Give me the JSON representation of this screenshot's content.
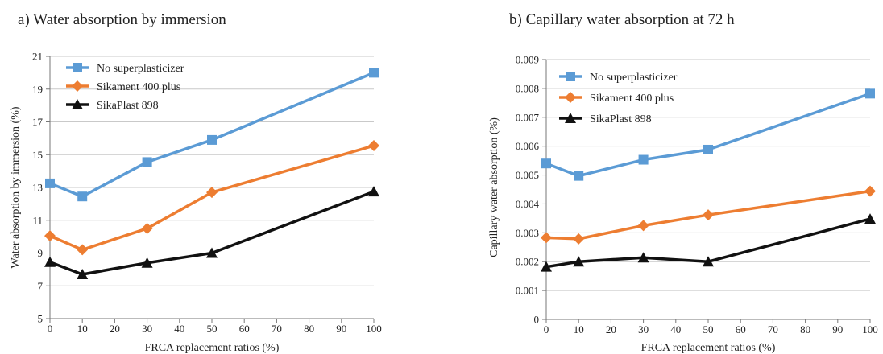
{
  "chart_data": [
    {
      "type": "line",
      "title": "a) Water absorption by immersion",
      "xlabel": "FRCA replacement ratios (%)",
      "ylabel": "Water absorption by immersion (%)",
      "x_ticks": [
        "0",
        "10",
        "20",
        "30",
        "40",
        "50",
        "60",
        "70",
        "80",
        "90",
        "100"
      ],
      "y_ticks": [
        "5",
        "7",
        "9",
        "11",
        "13",
        "15",
        "17",
        "19",
        "21"
      ],
      "ylim": [
        5,
        21
      ],
      "grid": "horizontal",
      "legend_position": "top-left",
      "x": [
        0,
        10,
        30,
        50,
        100
      ],
      "series": [
        {
          "name": "No superplasticizer",
          "values": [
            13.25,
            12.45,
            14.55,
            15.9,
            20.0
          ],
          "color": "#5b9bd5",
          "marker": "square"
        },
        {
          "name": "Sikament 400 plus",
          "values": [
            10.05,
            9.2,
            10.5,
            12.7,
            15.55
          ],
          "color": "#ed7d31",
          "marker": "diamond"
        },
        {
          "name": "SikaPlast 898",
          "values": [
            8.45,
            7.7,
            8.4,
            9.0,
            12.75
          ],
          "color": "#111111",
          "marker": "triangle"
        }
      ]
    },
    {
      "type": "line",
      "title": "b) Capillary water absorption at 72 h",
      "xlabel": "FRCA replacement ratios (%)",
      "ylabel": "Capillary water absorption (%)",
      "x_ticks": [
        "0",
        "10",
        "20",
        "30",
        "40",
        "50",
        "60",
        "70",
        "80",
        "90",
        "100"
      ],
      "y_ticks": [
        "0",
        "0.001",
        "0.002",
        "0.003",
        "0.004",
        "0.005",
        "0.006",
        "0.007",
        "0.008",
        "0.009"
      ],
      "ylim": [
        0,
        0.009
      ],
      "grid": "horizontal",
      "legend_position": "top-left",
      "x": [
        0,
        10,
        30,
        50,
        100
      ],
      "series": [
        {
          "name": "No superplasticizer",
          "values": [
            0.0054,
            0.00497,
            0.00553,
            0.00588,
            0.00782
          ],
          "color": "#5b9bd5",
          "marker": "square"
        },
        {
          "name": "Sikament 400 plus",
          "values": [
            0.00283,
            0.00279,
            0.00325,
            0.00362,
            0.00444
          ],
          "color": "#ed7d31",
          "marker": "diamond"
        },
        {
          "name": "SikaPlast 898",
          "values": [
            0.00182,
            0.002,
            0.00214,
            0.002,
            0.00348
          ],
          "color": "#111111",
          "marker": "triangle"
        }
      ]
    }
  ]
}
